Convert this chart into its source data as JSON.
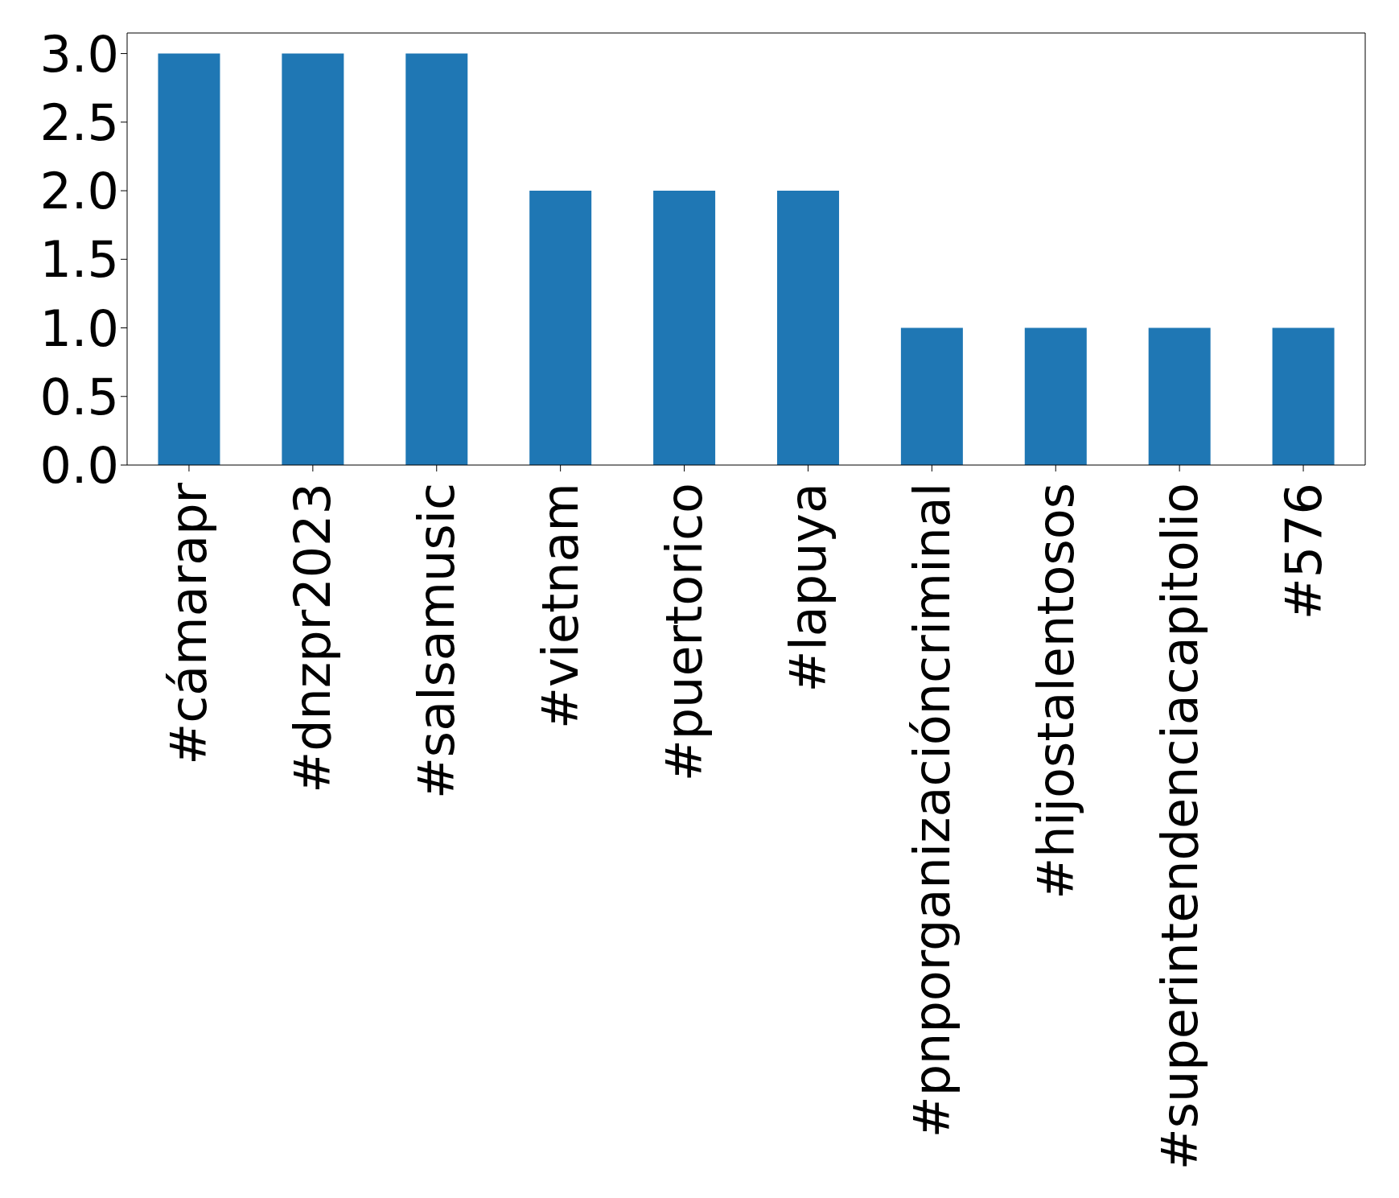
{
  "chart_data": {
    "type": "bar",
    "categories": [
      "#cámarapr",
      "#dnzpr2023",
      "#salsamusic",
      "#vietnam",
      "#puertorico",
      "#lapuya",
      "#pnporganizacióncriminal",
      "#hijostalentosos",
      "#superintendenciacapitolio",
      "#576"
    ],
    "values": [
      3,
      3,
      3,
      2,
      2,
      2,
      1,
      1,
      1,
      1
    ],
    "color": "#1f77b4",
    "ylim": [
      0,
      3.15
    ],
    "yticks": [
      {
        "value": 0,
        "label": "0.0"
      },
      {
        "value": 0.5,
        "label": "0.5"
      },
      {
        "value": 1,
        "label": "1.0"
      },
      {
        "value": 1.5,
        "label": "1.5"
      },
      {
        "value": 2,
        "label": "2.0"
      },
      {
        "value": 2.5,
        "label": "2.5"
      },
      {
        "value": 3,
        "label": "3.0"
      }
    ],
    "grid": false
  }
}
